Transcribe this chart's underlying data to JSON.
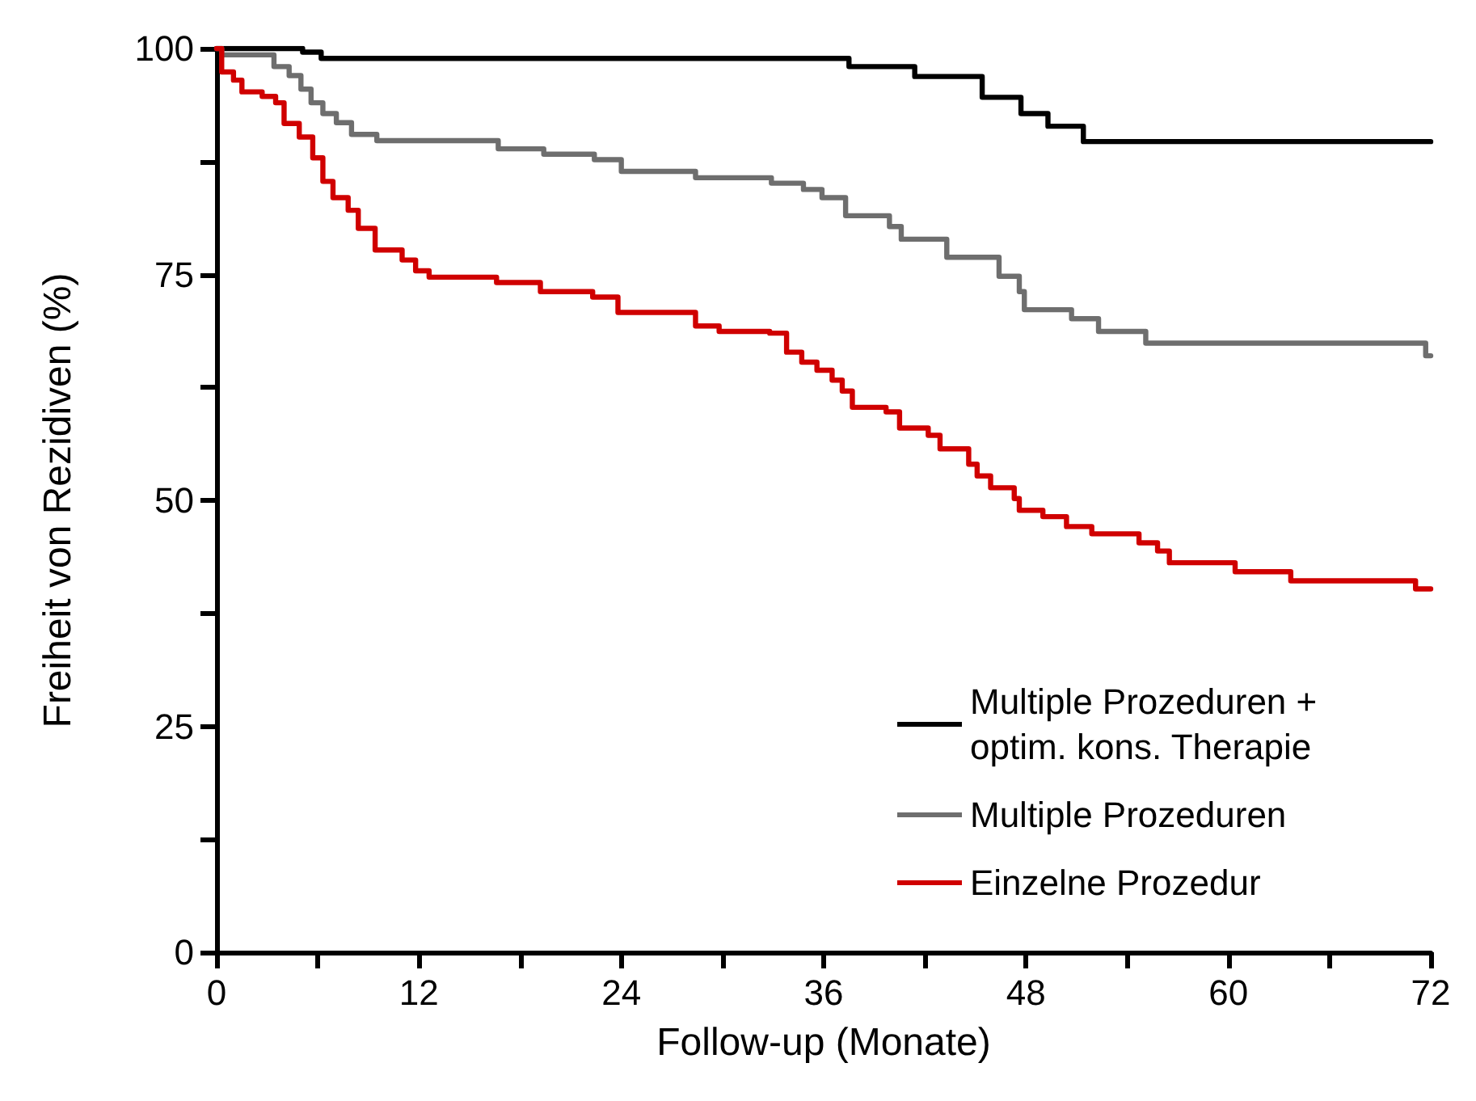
{
  "chart_data": {
    "type": "step",
    "xlabel": "Follow-up (Monate)",
    "ylabel": "Freiheit von Rezidiven (%)",
    "xlim": [
      0,
      72
    ],
    "ylim": [
      0,
      100
    ],
    "xticks": [
      0,
      {
        "value": 6,
        "label": null
      },
      12,
      {
        "value": 18,
        "label": null
      },
      24,
      {
        "value": 30,
        "label": null
      },
      36,
      {
        "value": 42,
        "label": null
      },
      48,
      {
        "value": 54,
        "label": null
      },
      60,
      {
        "value": 66,
        "label": null
      },
      72
    ],
    "yticks": [
      0,
      {
        "value": 12.5,
        "label": null
      },
      25,
      {
        "value": 37.5,
        "label": null
      },
      50,
      {
        "value": 62.5,
        "label": null
      },
      75,
      {
        "value": 87.5,
        "label": null
      },
      100
    ],
    "grid": false,
    "legend": "bottom right",
    "marker": "none",
    "line_style": "solid",
    "series": [
      {
        "name": "Multiple Prozeduren + optim. kons. Therapie",
        "color": "#000000",
        "x": [
          0,
          5.1,
          6.2,
          37.5,
          41.4,
          45.4,
          47.7,
          49.3,
          51.4,
          72
        ],
        "values": [
          100,
          99.6,
          98.9,
          98,
          96.9,
          94.6,
          92.8,
          91.4,
          89.7,
          89.7
        ]
      },
      {
        "name": "Multiple Prozeduren",
        "color": "#6e6e6e",
        "x": [
          0,
          0.3,
          3.4,
          4.3,
          5.0,
          5.6,
          6.3,
          7.1,
          8.0,
          9.5,
          16.7,
          19.4,
          22.4,
          24.0,
          28.4,
          32.9,
          34.8,
          35.9,
          37.3,
          39.9,
          40.6,
          43.3,
          46.4,
          47.6,
          47.9,
          50.7,
          52.3,
          55.1,
          71.7,
          72
        ],
        "values": [
          100,
          99.3,
          98,
          97,
          95.5,
          94,
          92.8,
          91.8,
          90.5,
          89.8,
          88.9,
          88.3,
          87.7,
          86.4,
          85.7,
          85.1,
          84.4,
          83.5,
          81.5,
          80.3,
          78.9,
          76.9,
          74.8,
          73.1,
          71.1,
          70.1,
          68.7,
          67.4,
          66,
          66
        ]
      },
      {
        "name": "Einzelne Prozedur",
        "color": "#d00000",
        "x": [
          0,
          0.3,
          1.0,
          1.5,
          2.7,
          3.5,
          4.0,
          4.9,
          5.7,
          6.3,
          6.9,
          7.8,
          8.4,
          9.4,
          11.0,
          11.8,
          12.6,
          16.6,
          19.2,
          22.3,
          23.8,
          28.4,
          29.8,
          32.8,
          33.8,
          34.7,
          35.6,
          36.5,
          37.1,
          37.7,
          39.7,
          40.5,
          42.2,
          42.9,
          44.6,
          45.1,
          45.9,
          47.3,
          47.6,
          49.0,
          50.4,
          51.9,
          54.7,
          55.8,
          56.5,
          60.4,
          63.7,
          71.1,
          72
        ],
        "values": [
          100,
          97.4,
          96.5,
          95.2,
          94.7,
          94,
          91.7,
          90.2,
          87.9,
          85.3,
          83.5,
          82.1,
          80.1,
          77.7,
          76.6,
          75.4,
          74.7,
          74.1,
          73.1,
          72.5,
          70.8,
          69.3,
          68.7,
          68.5,
          66.4,
          65.3,
          64.4,
          63.3,
          62.1,
          60.3,
          59.8,
          58,
          57.2,
          55.7,
          54,
          52.7,
          51.4,
          50.2,
          48.9,
          48.2,
          47.1,
          46.3,
          45.3,
          44.4,
          43.1,
          42.1,
          41.1,
          40.2,
          40.2
        ]
      }
    ]
  }
}
